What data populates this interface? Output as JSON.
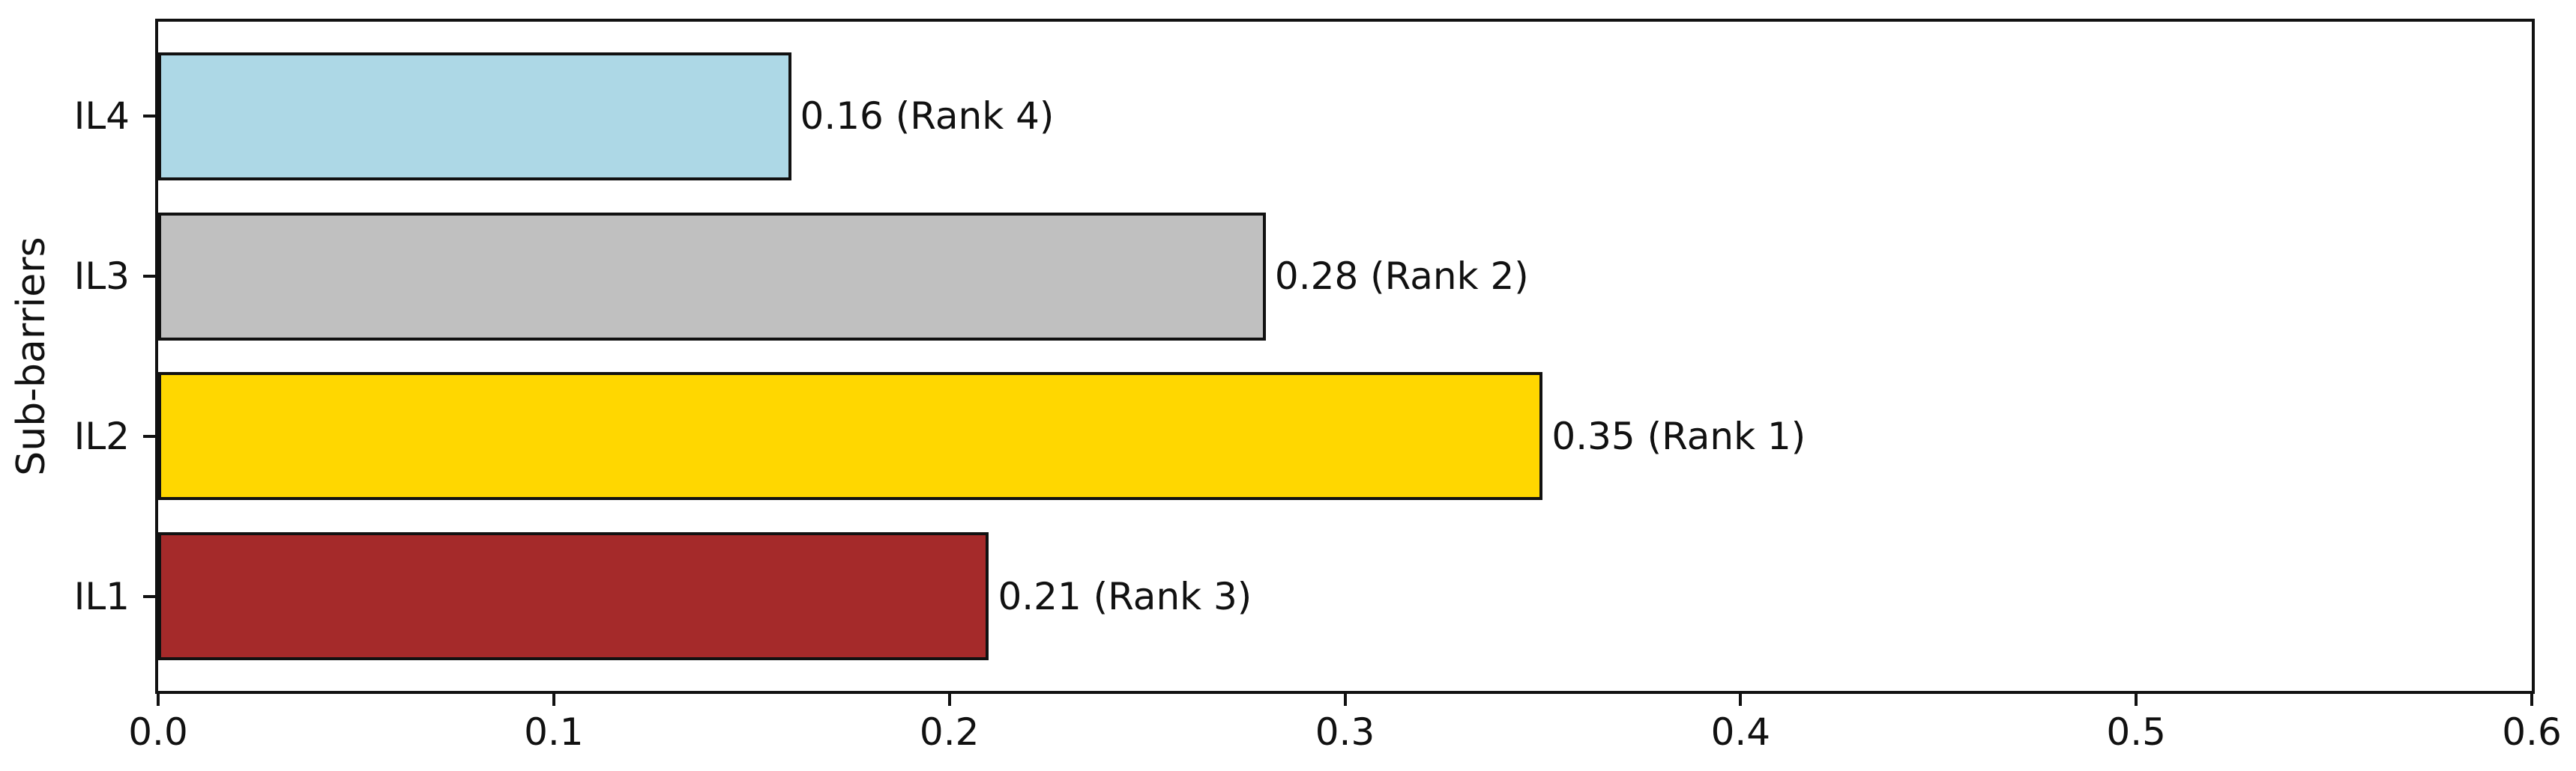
{
  "chart_data": {
    "type": "bar",
    "orientation": "horizontal",
    "title": "",
    "xlabel": "",
    "ylabel": "Sub-barriers",
    "xlim": [
      0.0,
      0.6
    ],
    "xticks": [
      0.0,
      0.1,
      0.2,
      0.3,
      0.4,
      0.5,
      0.6
    ],
    "xtick_labels": [
      "0.0",
      "0.1",
      "0.2",
      "0.3",
      "0.4",
      "0.5",
      "0.6"
    ],
    "categories_bottom_to_top": [
      "IL1",
      "IL2",
      "IL3",
      "IL4"
    ],
    "grid": false,
    "legend": null,
    "bars_top_to_bottom": [
      {
        "category": "IL4",
        "value": 0.16,
        "rank": 4,
        "label": "0.16 (Rank 4)",
        "color": "#ADD8E6"
      },
      {
        "category": "IL3",
        "value": 0.28,
        "rank": 2,
        "label": "0.28 (Rank 2)",
        "color": "#C0C0C0"
      },
      {
        "category": "IL2",
        "value": 0.35,
        "rank": 1,
        "label": "0.35 (Rank 1)",
        "color": "#FFD700"
      },
      {
        "category": "IL1",
        "value": 0.21,
        "rank": 3,
        "label": "0.21 (Rank 3)",
        "color": "#A52A2A"
      }
    ],
    "bar_edge_color": "#111111",
    "axis_color": "#111111",
    "text_color": "#111111",
    "background_color": "#ffffff"
  }
}
